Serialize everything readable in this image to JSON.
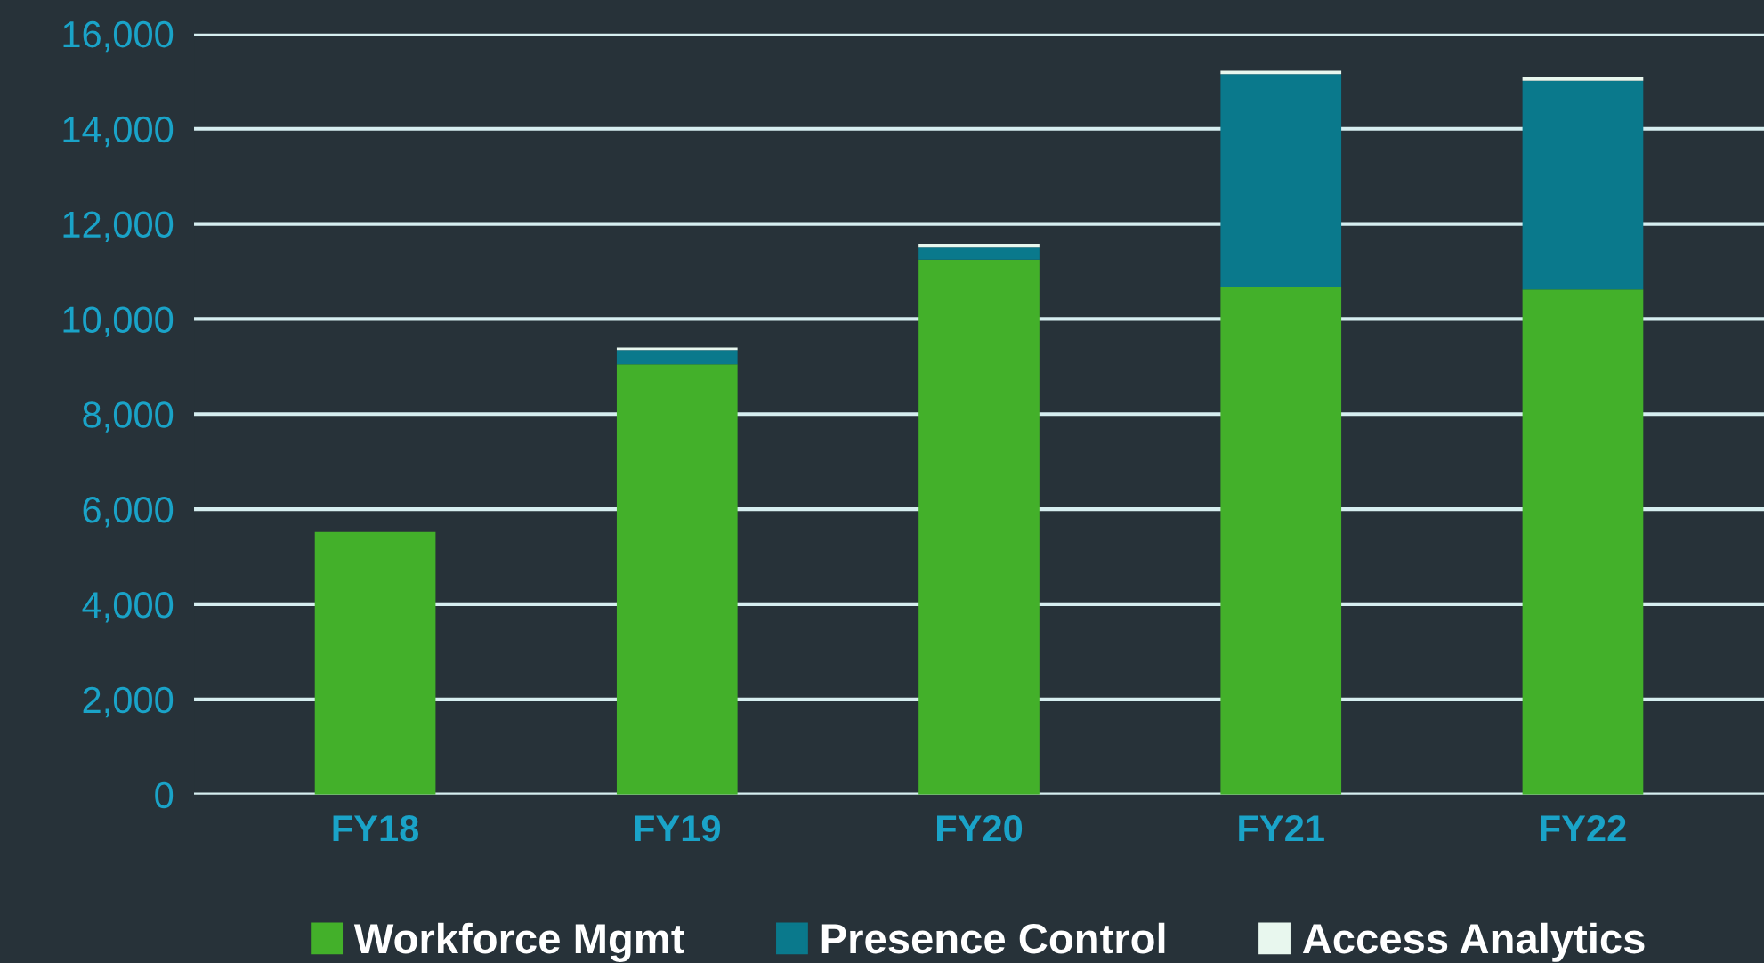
{
  "chart_data": {
    "type": "bar",
    "stacked": true,
    "categories": [
      "FY18",
      "FY19",
      "FY20",
      "FY21",
      "FY22"
    ],
    "series": [
      {
        "name": "Workforce Mgmt",
        "color": "#43b02a",
        "values": [
          5520,
          9050,
          11250,
          10680,
          10620
        ]
      },
      {
        "name": "Presence Control",
        "color": "#0a798c",
        "values": [
          0,
          300,
          250,
          4470,
          4390
        ]
      },
      {
        "name": "Access Analytics",
        "color": "#e8f7ee",
        "values": [
          0,
          50,
          80,
          70,
          70
        ]
      }
    ],
    "ylim": [
      0,
      16000
    ],
    "yticks": [
      {
        "value": 0,
        "label": "0"
      },
      {
        "value": 2000,
        "label": "2,000"
      },
      {
        "value": 4000,
        "label": "4,000"
      },
      {
        "value": 6000,
        "label": "6,000"
      },
      {
        "value": 8000,
        "label": "8,000"
      },
      {
        "value": 10000,
        "label": "10,000"
      },
      {
        "value": 12000,
        "label": "12,000"
      },
      {
        "value": 14000,
        "label": "14,000"
      },
      {
        "value": 16000,
        "label": "16,000"
      }
    ],
    "grid": "y",
    "legend": "bottom"
  }
}
